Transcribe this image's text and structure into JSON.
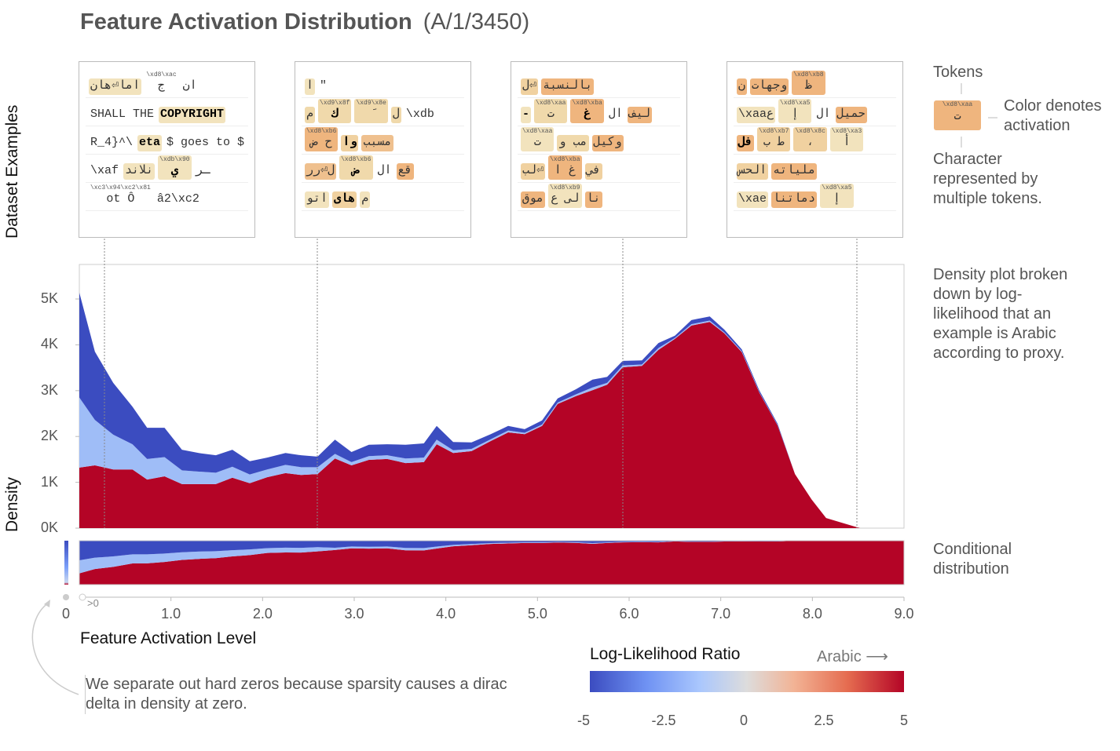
{
  "title": {
    "main": "Feature Activation Distribution",
    "id": "(A/1/3450)"
  },
  "labels": {
    "dataset_examples": "Dataset Examples",
    "density": "Density",
    "xlabel": "Feature Activation Level",
    "hard_zero": "0",
    "nonzero": ">0"
  },
  "examples": [
    {
      "rows": [
        [
          {
            "t": "اما⏎هان",
            "bg": "#f2e3bd"
          },
          {
            "t": "ج",
            "sup": "\\xd8\\xac"
          },
          {
            "t": "ان"
          }
        ],
        [
          {
            "t": "SHALL THE"
          },
          {
            "t": "COPYRIGHT",
            "bg": "#f2e3bd",
            "b": true
          }
        ],
        [
          {
            "t": "R_4}^\\"
          },
          {
            "t": "eta",
            "bg": "#f2e3bd",
            "b": true
          },
          {
            "t": "$ goes to $"
          }
        ],
        [
          {
            "t": "\\xaf"
          },
          {
            "t": "نلاند",
            "bg": "#f2e3bd"
          },
          {
            "t": "ي",
            "bg": "#f2e3bd",
            "b": true,
            "sup": "\\xdb\\x90"
          },
          {
            "t": "ـر"
          }
        ],
        [
          {
            "t": "ot Ô",
            "sup": "\\xc3\\x94\\xc2\\x81"
          },
          {
            "t": "â2\\xc2"
          }
        ]
      ]
    },
    {
      "rows": [
        [
          {
            "t": "ا",
            "bg": "#f2e3bd"
          },
          {
            "t": "\""
          }
        ],
        [
          {
            "t": "م",
            "bg": "#f0d9ab"
          },
          {
            "t": "ك",
            "bg": "#f0d9ab",
            "b": true,
            "sup": "\\xd9\\x8f"
          },
          {
            "t": "  َ  ",
            "bg": "#f0d9ab",
            "sup": "\\xd9\\x8e"
          },
          {
            "t": "ل",
            "bg": "#f0d9ab"
          },
          {
            "t": "\\xdb"
          }
        ],
        [
          {
            "t": "ح ض",
            "bg": "#efb57e",
            "sup": "\\xd8\\xb6"
          },
          {
            "t": "وا",
            "bg": "#f0d1a0",
            "b": true
          },
          {
            "t": "مسبب",
            "bg": "#efc08e"
          }
        ],
        [
          {
            "t": "ل⏎رر",
            "bg": "#efc08e"
          },
          {
            "t": "ض",
            "bg": "#f0d9ab",
            "b": true,
            "sup": "\\xd8\\xb6"
          },
          {
            "t": "ال"
          },
          {
            "t": "قع",
            "bg": "#efb57e"
          }
        ],
        [
          {
            "t": "اتو",
            "bg": "#f2e3bd"
          },
          {
            "t": "هاى",
            "bg": "#f0d1a0",
            "b": true
          },
          {
            "t": "م",
            "bg": "#f2e3bd"
          }
        ]
      ]
    },
    {
      "rows": [
        [
          {
            "t": "ل⏎",
            "bg": "#f0d1a0"
          },
          {
            "t": "بالنسبة",
            "bg": "#efb57e"
          }
        ],
        [
          {
            "t": "-",
            "bg": "#f2e3bd",
            "b": true
          },
          {
            "t": "ت",
            "bg": "#f0d9ab",
            "sup": "\\xd8\\xaa"
          },
          {
            "t": "غ",
            "bg": "#efb57e",
            "b": true,
            "sup": "\\xd8\\xba"
          },
          {
            "t": "ال"
          },
          {
            "t": "ليف",
            "bg": "#efb57e"
          }
        ],
        [
          {
            "t": "ت",
            "bg": "#f2e3bd",
            "sup": "\\xd8\\xaa"
          },
          {
            "t": "مب و",
            "bg": "#f0d9ab"
          },
          {
            "t": "وكيل",
            "bg": "#efb57e"
          }
        ],
        [
          {
            "t": "لب⏎",
            "bg": "#f0d1a0"
          },
          {
            "t": "غ ا",
            "bg": "#efb57e",
            "sup": "\\xd8\\xba"
          },
          {
            "t": "في",
            "bg": "#f0d1a0"
          }
        ],
        [
          {
            "t": "موق",
            "bg": "#efb57e"
          },
          {
            "t": "لى ع",
            "bg": "#f2e3bd",
            "sup": "\\xd8\\xb9"
          },
          {
            "t": "نا",
            "bg": "#efb57e"
          }
        ]
      ]
    },
    {
      "rows": [
        [
          {
            "t": "ن",
            "bg": "#efb57e"
          },
          {
            "t": "وجهات",
            "bg": "#efb57e"
          },
          {
            "t": "ظ",
            "bg": "#efb57e",
            "sup": "\\xd8\\xb8"
          }
        ],
        [
          {
            "t": "\\xaaع",
            "bg": "#f2e3bd"
          },
          {
            "t": "إ",
            "bg": "#f2e3bd",
            "sup": "\\xd8\\xa5"
          },
          {
            "t": "ال"
          },
          {
            "t": "حميل",
            "bg": "#efb57e"
          }
        ],
        [
          {
            "t": "فل",
            "bg": "#efb57e",
            "b": true
          },
          {
            "t": "ط ب",
            "bg": "#f0d1a0",
            "sup": "\\xd8\\xb7"
          },
          {
            "t": "،",
            "bg": "#f0d1a0",
            "sup": "\\xd8\\x8c"
          },
          {
            "t": "أ",
            "bg": "#f2e3bd",
            "sup": "\\xd8\\xa3"
          }
        ],
        [
          {
            "t": "الحس",
            "bg": "#f0d1a0"
          },
          {
            "t": "ملياته",
            "bg": "#efb57e"
          }
        ],
        [
          {
            "t": "\\xae",
            "bg": "#f2e3bd"
          },
          {
            "t": "دماتنا",
            "bg": "#efb57e"
          },
          {
            "t": "إ",
            "bg": "#f2e3bd",
            "sup": "\\xd8\\xa5"
          }
        ]
      ]
    }
  ],
  "legend_tokens": {
    "title": "Tokens",
    "sample_token": "ت",
    "sample_bytes": "\\xd8\\xaa",
    "sample_color": "#efb57e",
    "color_note": "Color denotes activation",
    "char_note": "Character represented by multiple tokens."
  },
  "notes": {
    "density": "Density plot broken down by log-likelihood that an example is Arabic according to proxy.",
    "conditional": "Conditional distribution",
    "hard_zero": "We separate out hard zeros because sparsity causes a dirac delta in density at zero."
  },
  "colorbar": {
    "title": "Log-Likelihood Ratio",
    "direction_label": "Arabic",
    "arrow": "⟶",
    "ticks": [
      "-5",
      "-2.5",
      "0",
      "2.5",
      "5"
    ],
    "range": [
      -5,
      5
    ]
  },
  "chart_data": {
    "type": "area",
    "stacked": true,
    "xlabel": "Feature Activation Level",
    "ylabel": "Density",
    "xlim": [
      0,
      9
    ],
    "ylim": [
      0,
      5500
    ],
    "xticks": [
      "1.0",
      "2.0",
      "3.0",
      "4.0",
      "5.0",
      "6.0",
      "7.0",
      "8.0",
      "9.0"
    ],
    "yticks": [
      "0K",
      "1K",
      "2K",
      "3K",
      "4K",
      "5K"
    ],
    "example_activations": [
      0.28,
      2.6,
      5.95,
      8.5
    ],
    "x": [
      0,
      0.17,
      0.37,
      0.58,
      0.74,
      0.93,
      1.12,
      1.33,
      1.49,
      1.67,
      1.86,
      2.05,
      2.25,
      2.42,
      2.6,
      2.79,
      2.97,
      3.16,
      3.36,
      3.56,
      3.76,
      3.9,
      4.08,
      4.28,
      4.49,
      4.68,
      4.86,
      5.05,
      5.22,
      5.42,
      5.6,
      5.76,
      5.93,
      6.14,
      6.32,
      6.5,
      6.68,
      6.88,
      7.04,
      7.23,
      7.42,
      7.62,
      7.81,
      7.99,
      8.15,
      8.35,
      8.52,
      9.0
    ],
    "series": [
      {
        "color": "#b40426",
        "llr": 5,
        "values": [
          1320,
          1370,
          1280,
          1280,
          1060,
          1130,
          960,
          960,
          960,
          1100,
          980,
          1110,
          1200,
          1160,
          1180,
          1520,
          1370,
          1490,
          1510,
          1420,
          1440,
          1830,
          1640,
          1680,
          1900,
          2090,
          2050,
          2230,
          2710,
          2880,
          3010,
          3130,
          3510,
          3540,
          3890,
          4130,
          4420,
          4500,
          4250,
          3840,
          2960,
          2240,
          1180,
          630,
          220,
          100,
          0,
          0
        ]
      },
      {
        "color": "#9fbdf7",
        "llr": -2.5,
        "values": [
          1530,
          990,
          760,
          550,
          450,
          420,
          300,
          270,
          250,
          240,
          190,
          170,
          180,
          170,
          150,
          100,
          70,
          80,
          80,
          100,
          100,
          100,
          60,
          50,
          40,
          40,
          30,
          30,
          30,
          40,
          60,
          40,
          40,
          30,
          40,
          20,
          30,
          30,
          20,
          20,
          10,
          10,
          0,
          0,
          0,
          0,
          0,
          0
        ]
      },
      {
        "color": "#3b4cc0",
        "llr": -5,
        "values": [
          2290,
          1490,
          1130,
          820,
          680,
          640,
          450,
          400,
          380,
          370,
          290,
          260,
          260,
          260,
          230,
          310,
          220,
          250,
          240,
          300,
          310,
          300,
          180,
          140,
          110,
          100,
          80,
          90,
          90,
          110,
          170,
          130,
          100,
          90,
          110,
          50,
          90,
          90,
          60,
          40,
          40,
          30,
          0,
          0,
          0,
          0,
          0,
          0
        ]
      }
    ]
  }
}
